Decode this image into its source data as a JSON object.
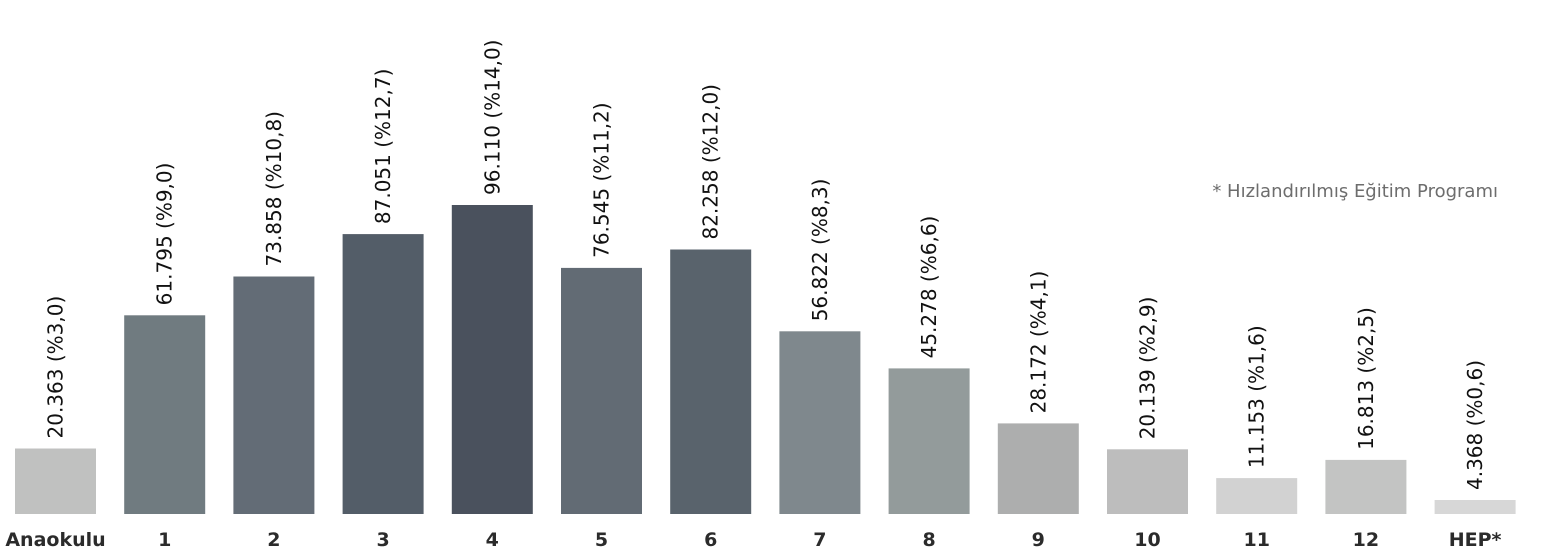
{
  "chart_data": {
    "type": "bar",
    "categories": [
      "Anaokulu",
      "1",
      "2",
      "3",
      "4",
      "5",
      "6",
      "7",
      "8",
      "9",
      "10",
      "11",
      "12",
      "HEP*"
    ],
    "values": [
      20363,
      61795,
      73858,
      87051,
      96110,
      76545,
      82258,
      56822,
      45278,
      28172,
      20139,
      11153,
      16813,
      4368
    ],
    "data_labels": [
      "20.363 (%3,0)",
      "61.795 (%9,0)",
      "73.858 (%10,8)",
      "87.051 (%12,7)",
      "96.110 (%14,0)",
      "76.545 (%11,2)",
      "82.258 (%12,0)",
      "56.822 (%8,3)",
      "45.278 (%6,6)",
      "28.172 (%4,1)",
      "20.139 (%2,9)",
      "11.153 (%1,6)",
      "16.813 (%2,5)",
      "4.368 (%0,6)"
    ],
    "bar_colors": [
      "#c0c1c0",
      "#707b80",
      "#636c76",
      "#535d68",
      "#4a515d",
      "#626b74",
      "#59636c",
      "#7f888d",
      "#939b9b",
      "#adaeae",
      "#bdbdbd",
      "#d2d2d2",
      "#c3c4c3",
      "#d7d7d7"
    ],
    "ylim": [
      0,
      100000
    ],
    "grid": false,
    "legend": "none",
    "note": "* Hızlandırılmış Eğitim Programı"
  }
}
